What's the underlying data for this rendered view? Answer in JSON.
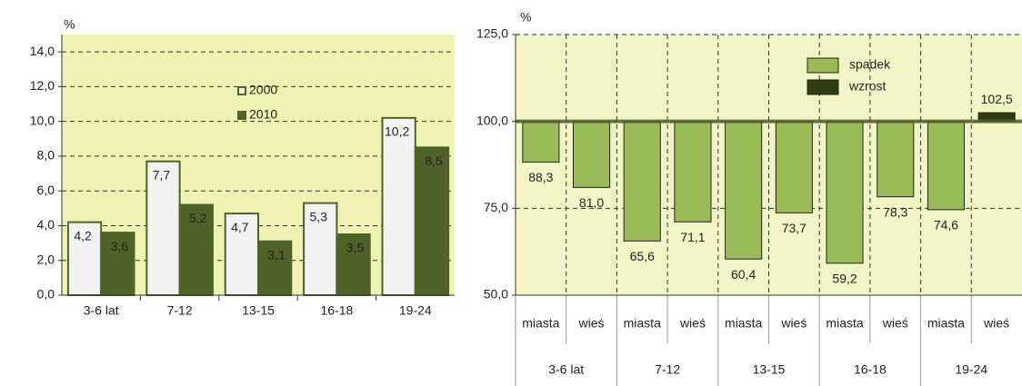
{
  "chart_data": [
    {
      "type": "bar",
      "y_axis_label": "%",
      "categories": [
        "3-6 lat",
        "7-12",
        "13-15",
        "16-18",
        "19-24"
      ],
      "series": [
        {
          "name": "2000",
          "color": "#f2f2f2",
          "values": [
            4.2,
            7.7,
            4.7,
            5.3,
            10.2
          ],
          "value_labels": [
            "4,2",
            "7,7",
            "4,7",
            "5,3",
            "10,2"
          ]
        },
        {
          "name": "2010",
          "color": "#4f6228",
          "values": [
            3.6,
            5.2,
            3.1,
            3.5,
            8.5
          ],
          "value_labels": [
            "3,6",
            "5,2",
            "3,1",
            "3,5",
            "8,5"
          ]
        }
      ],
      "ylim": [
        0,
        15
      ],
      "yticks": [
        {
          "value": 0,
          "label": "0,0"
        },
        {
          "value": 2,
          "label": "2,0"
        },
        {
          "value": 4,
          "label": "4,0"
        },
        {
          "value": 6,
          "label": "6,0"
        },
        {
          "value": 8,
          "label": "8,0"
        },
        {
          "value": 10,
          "label": "10,0"
        },
        {
          "value": 12,
          "label": "12,0"
        },
        {
          "value": 14,
          "label": "14,0"
        }
      ],
      "grid": true
    },
    {
      "type": "bar",
      "y_axis_label": "%",
      "categories": [
        "miasta",
        "wieś",
        "miasta",
        "wieś",
        "miasta",
        "wieś",
        "miasta",
        "wieś",
        "miasta",
        "wieś"
      ],
      "groups": [
        "3-6 lat",
        "7-12",
        "13-15",
        "16-18",
        "19-24"
      ],
      "baseline": 100,
      "series": [
        {
          "name": "spadek",
          "color": "#9bbb59",
          "values": [
            88.3,
            81.0,
            65.6,
            71.1,
            60.4,
            73.7,
            59.2,
            78.3,
            74.6,
            null
          ],
          "value_labels": [
            "88,3",
            "81,0",
            "65,6",
            "71,1",
            "60,4",
            "73,7",
            "59,2",
            "78,3",
            "74,6",
            null
          ]
        },
        {
          "name": "wzrost",
          "color": "#2f3d14",
          "values": [
            null,
            null,
            null,
            null,
            null,
            null,
            null,
            null,
            null,
            102.5
          ],
          "value_labels": [
            null,
            null,
            null,
            null,
            null,
            null,
            null,
            null,
            null,
            "102,5"
          ]
        }
      ],
      "ylim": [
        50,
        125
      ],
      "yticks": [
        {
          "value": 50,
          "label": "50,0"
        },
        {
          "value": 75,
          "label": "75,0"
        },
        {
          "value": 100,
          "label": "100,0"
        },
        {
          "value": 125,
          "label": "125,0"
        }
      ],
      "grid": true
    }
  ]
}
